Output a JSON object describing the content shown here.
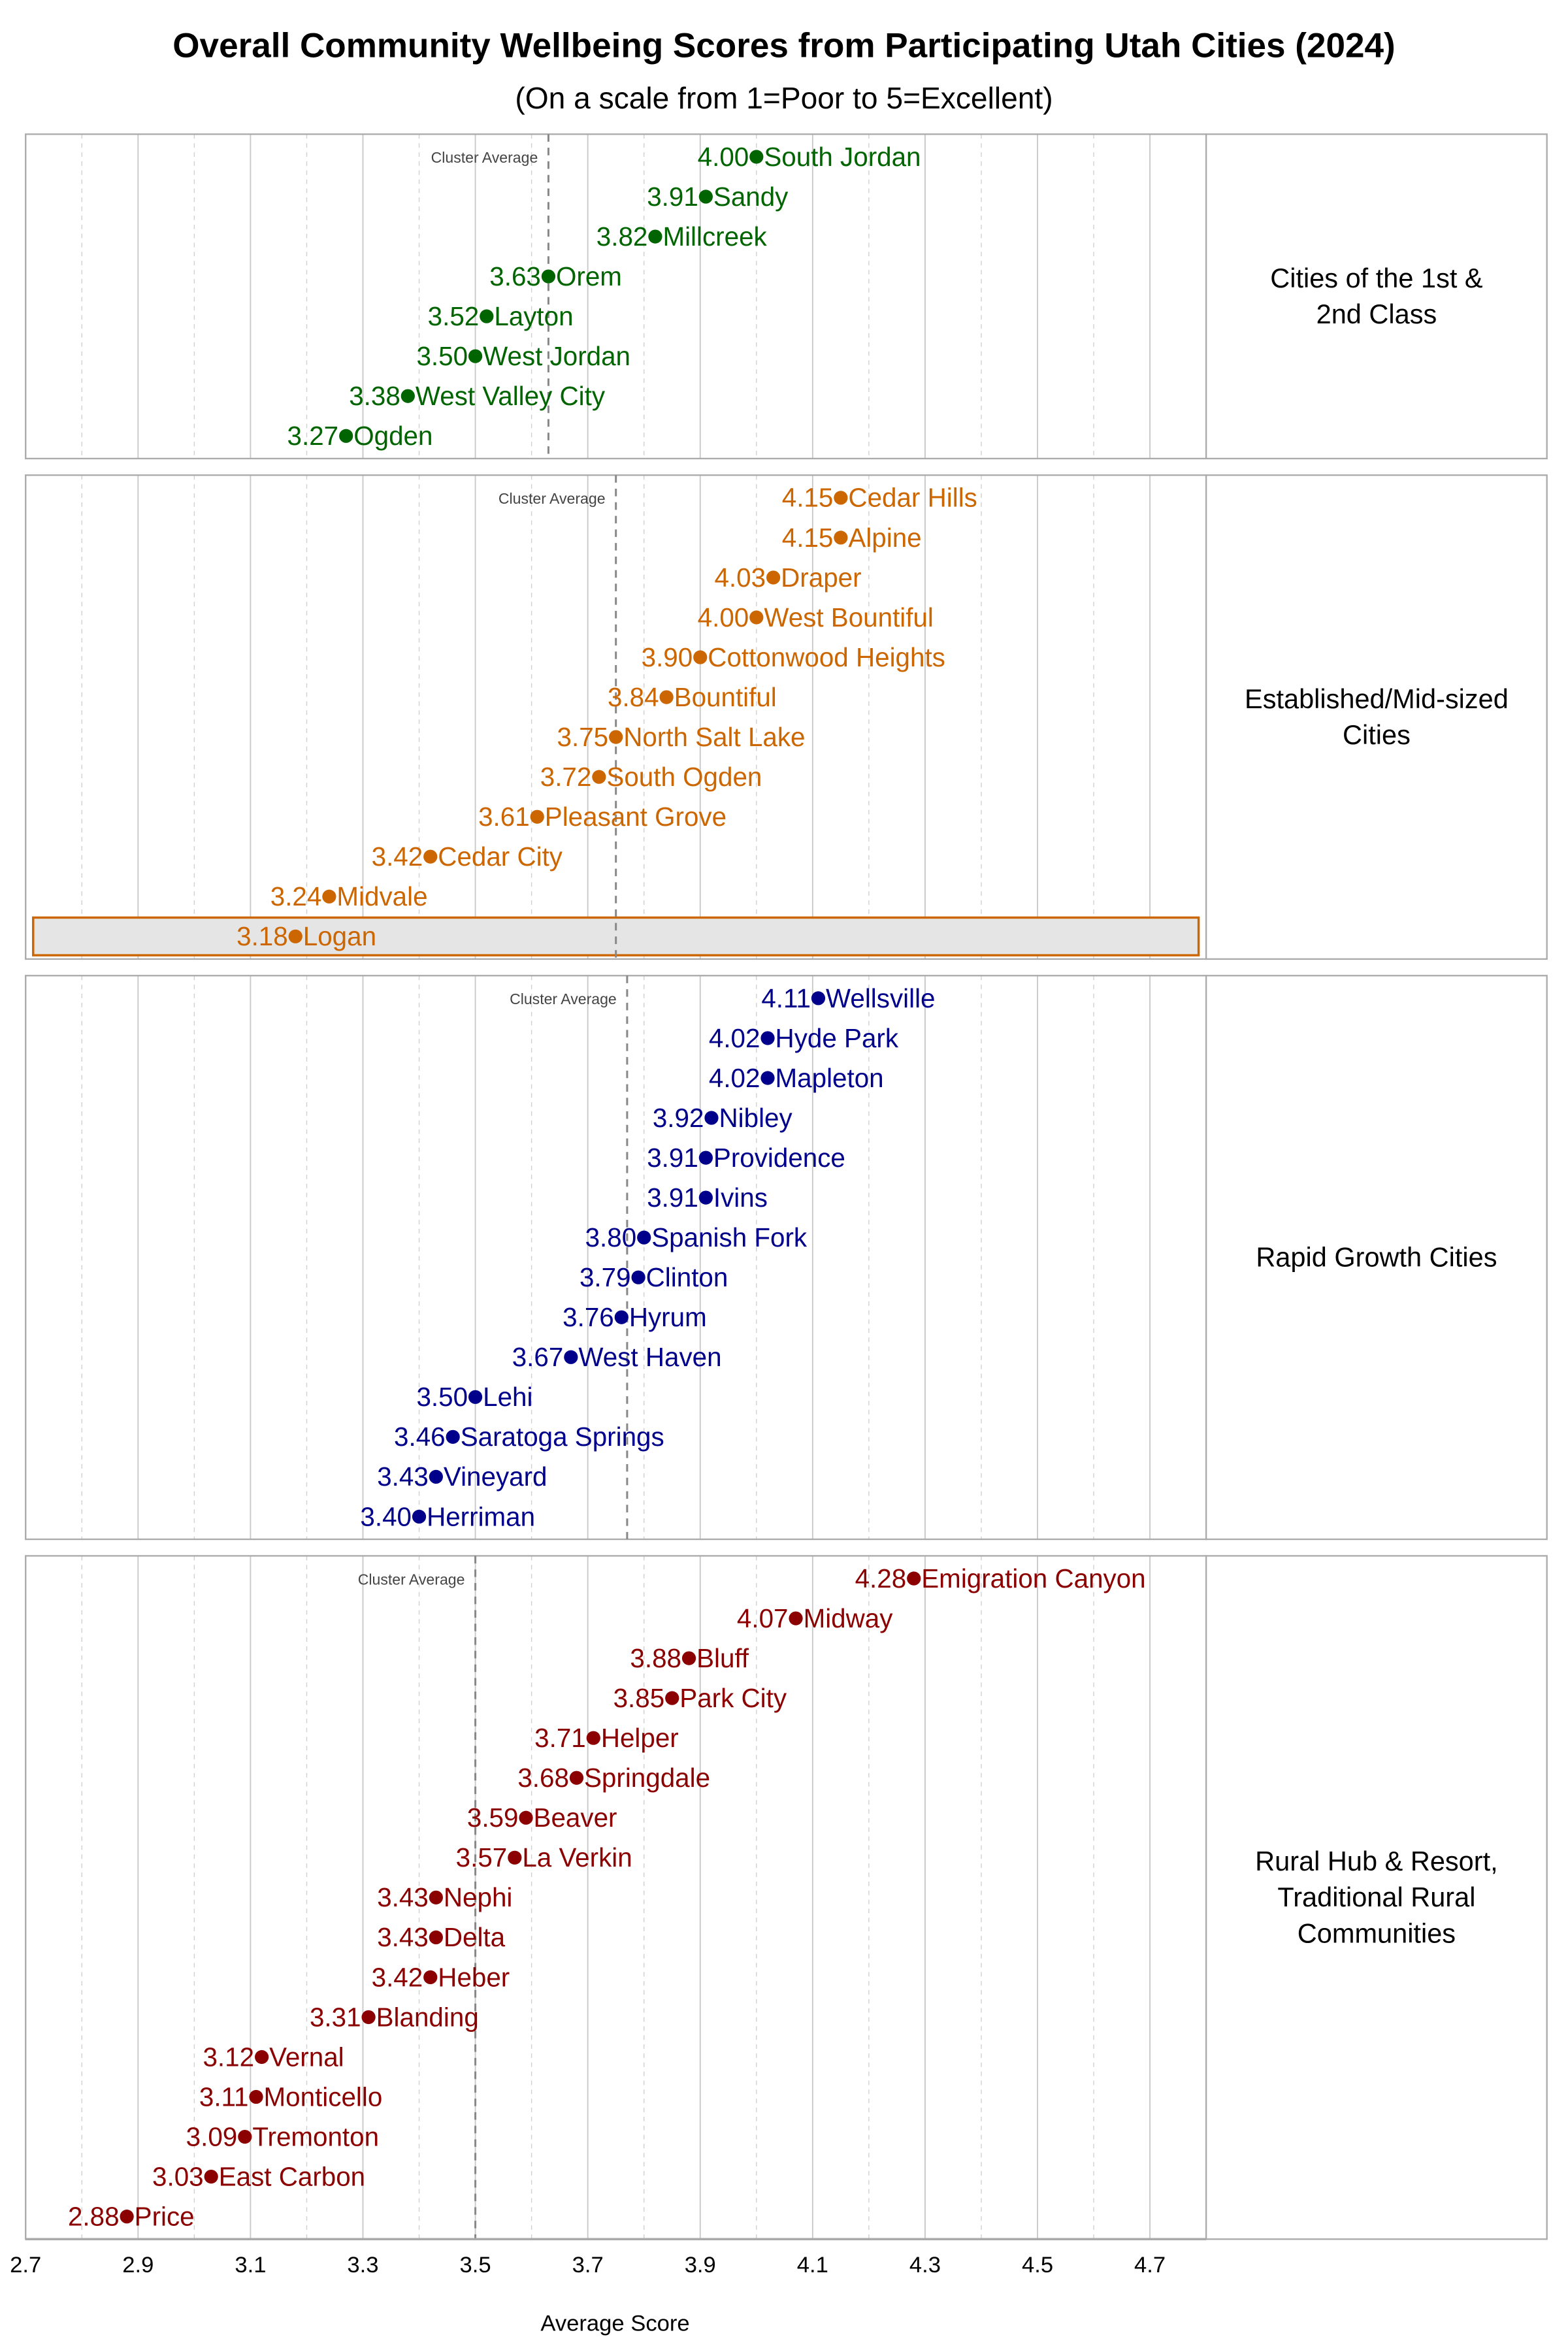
{
  "chart_data": {
    "type": "scatter",
    "title": "Overall Community Wellbeing Scores from Participating Utah Cities (2024)",
    "subtitle": "(On a scale from 1=Poor to 5=Excellent)",
    "xlabel": "Average Score",
    "xlim": [
      2.7,
      4.8
    ],
    "xticks": [
      "2.7",
      "2.9",
      "3.1",
      "3.3",
      "3.5",
      "3.7",
      "3.9",
      "4.1",
      "4.3",
      "4.5",
      "4.7"
    ],
    "grid": true,
    "cluster_average_label": "Cluster Average",
    "panels": [
      {
        "name": "Cities of the 1st & 2nd Class",
        "strip_lines": [
          "Cities of the 1st &",
          "2nd Class"
        ],
        "color": "#006400",
        "cluster_average": 3.63,
        "points": [
          [
            "South Jordan",
            4.0
          ],
          [
            "Sandy",
            3.91
          ],
          [
            "Millcreek",
            3.82
          ],
          [
            "Orem",
            3.63
          ],
          [
            "Layton",
            3.52
          ],
          [
            "West Jordan",
            3.5
          ],
          [
            "West Valley City",
            3.38
          ],
          [
            "Ogden",
            3.27
          ]
        ]
      },
      {
        "name": "Established/Mid-sized Cities",
        "strip_lines": [
          "Established/Mid-sized",
          "Cities"
        ],
        "color": "#cc6600",
        "cluster_average": 3.75,
        "highlight": "Logan",
        "points": [
          [
            "Cedar Hills",
            4.15
          ],
          [
            "Alpine",
            4.15
          ],
          [
            "Draper",
            4.03
          ],
          [
            "West Bountiful",
            4.0
          ],
          [
            "Cottonwood Heights",
            3.9
          ],
          [
            "Bountiful",
            3.84
          ],
          [
            "North Salt Lake",
            3.75
          ],
          [
            "South Ogden",
            3.72
          ],
          [
            "Pleasant Grove",
            3.61
          ],
          [
            "Cedar City",
            3.42
          ],
          [
            "Midvale",
            3.24
          ],
          [
            "Logan",
            3.18
          ]
        ]
      },
      {
        "name": "Rapid Growth Cities",
        "strip_lines": [
          "Rapid Growth Cities"
        ],
        "color": "#00008b",
        "cluster_average": 3.77,
        "points": [
          [
            "Wellsville",
            4.11
          ],
          [
            "Hyde Park",
            4.02
          ],
          [
            "Mapleton",
            4.02
          ],
          [
            "Nibley",
            3.92
          ],
          [
            "Providence",
            3.91
          ],
          [
            "Ivins",
            3.91
          ],
          [
            "Spanish Fork",
            3.8
          ],
          [
            "Clinton",
            3.79
          ],
          [
            "Hyrum",
            3.76
          ],
          [
            "West Haven",
            3.67
          ],
          [
            "Lehi",
            3.5
          ],
          [
            "Saratoga Springs",
            3.46
          ],
          [
            "Vineyard",
            3.43
          ],
          [
            "Herriman",
            3.4
          ]
        ]
      },
      {
        "name": "Rural Hub & Resort, Traditional Rural Communities",
        "strip_lines": [
          "Rural Hub & Resort,",
          "Traditional Rural",
          "Communities"
        ],
        "color": "#8b0000",
        "cluster_average": 3.5,
        "points": [
          [
            "Emigration Canyon",
            4.28
          ],
          [
            "Midway",
            4.07
          ],
          [
            "Bluff",
            3.88
          ],
          [
            "Park City",
            3.85
          ],
          [
            "Helper",
            3.71
          ],
          [
            "Springdale",
            3.68
          ],
          [
            "Beaver",
            3.59
          ],
          [
            "La Verkin",
            3.57
          ],
          [
            "Nephi",
            3.43
          ],
          [
            "Delta",
            3.43
          ],
          [
            "Heber",
            3.42
          ],
          [
            "Blanding",
            3.31
          ],
          [
            "Vernal",
            3.12
          ],
          [
            "Monticello",
            3.11
          ],
          [
            "Tremonton",
            3.09
          ],
          [
            "East Carbon",
            3.03
          ],
          [
            "Price",
            2.88
          ]
        ]
      }
    ]
  }
}
